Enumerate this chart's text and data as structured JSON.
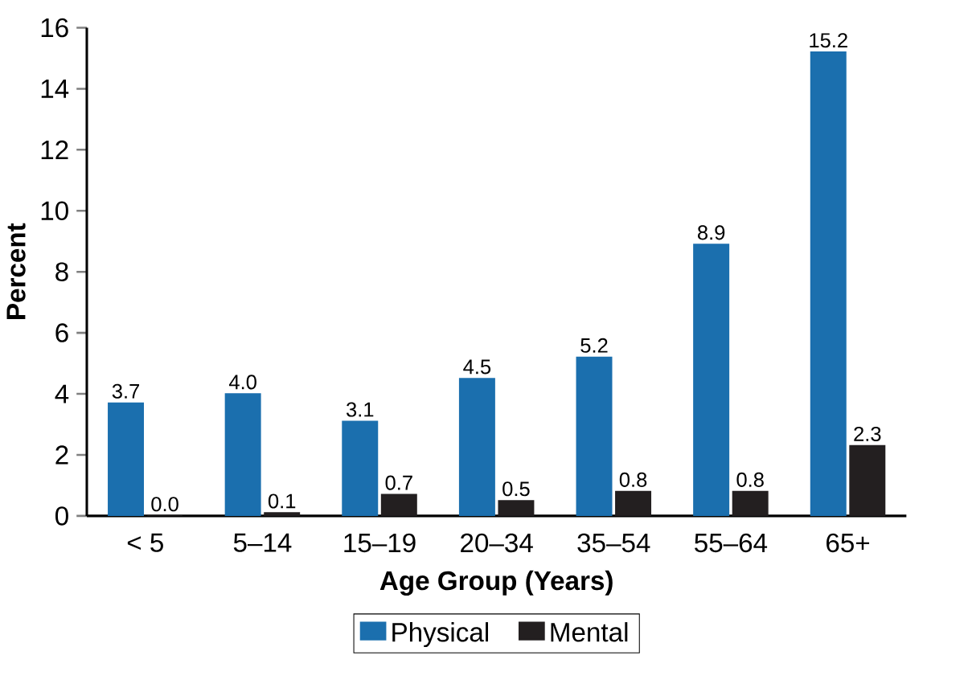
{
  "chart_data": {
    "type": "bar",
    "xlabel": "Age Group (Years)",
    "ylabel": "Percent",
    "categories": [
      "< 5",
      "5–14",
      "15–19",
      "20–34",
      "35–54",
      "55–64",
      "65+"
    ],
    "series": [
      {
        "name": "Physical",
        "color": "#1b6fae",
        "values": [
          3.7,
          4.0,
          3.1,
          4.5,
          5.2,
          8.9,
          15.2
        ],
        "value_labels": [
          "3.7",
          "4.0",
          "3.1",
          "4.5",
          "5.2",
          "8.9",
          "15.2"
        ]
      },
      {
        "name": "Mental",
        "color": "#231f20",
        "values": [
          0.0,
          0.1,
          0.7,
          0.5,
          0.8,
          0.8,
          2.3
        ],
        "value_labels": [
          "0.0",
          "0.1",
          "0.7",
          "0.5",
          "0.8",
          "0.8",
          "2.3"
        ]
      }
    ],
    "ylim": [
      0,
      16
    ],
    "yticks": [
      0,
      2,
      4,
      6,
      8,
      10,
      12,
      14,
      16
    ],
    "legend": "bottom"
  }
}
